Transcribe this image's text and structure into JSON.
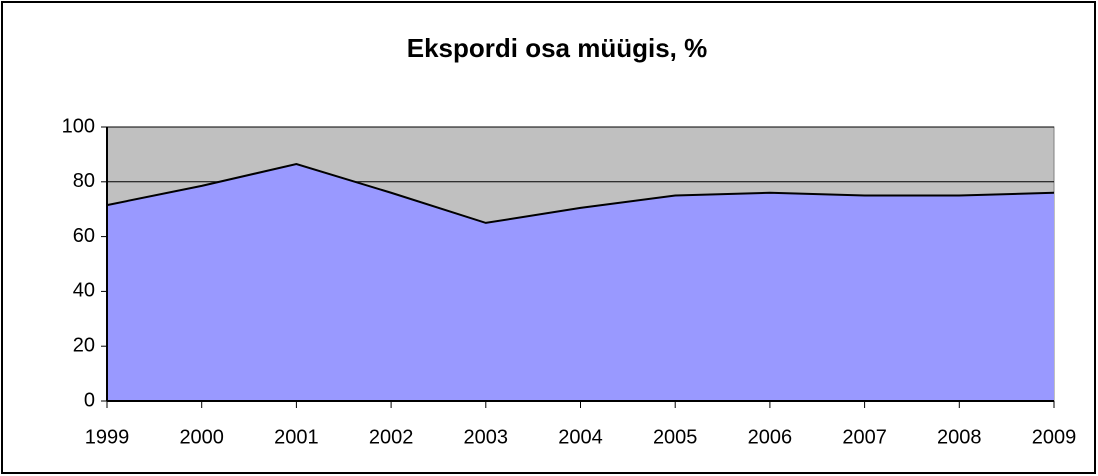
{
  "chart_data": {
    "type": "area",
    "title": "Ekspordi osa müügis, %",
    "categories": [
      "1999",
      "2000",
      "2001",
      "2002",
      "2003",
      "2004",
      "2005",
      "2006",
      "2007",
      "2008",
      "2009"
    ],
    "values": [
      71.5,
      78.5,
      86.5,
      76,
      65,
      70.5,
      75,
      76,
      75,
      75,
      76
    ],
    "color": "#9999ff",
    "plot_background": "#c0c0c0",
    "ylim": [
      0,
      100
    ],
    "yticks": [
      0,
      20,
      40,
      60,
      80,
      100
    ],
    "grid": true
  }
}
